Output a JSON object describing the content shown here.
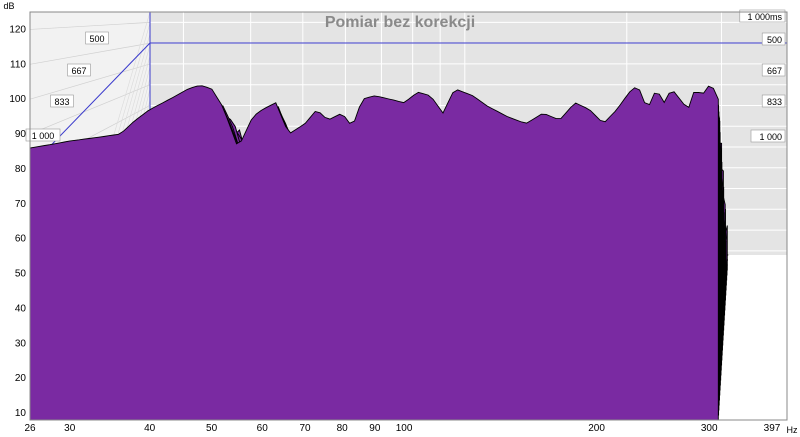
{
  "chart_data": {
    "type": "waterfall",
    "title": "Pomiar bez korekcji",
    "ylabel_unit": "dB",
    "xlabel_unit": "Hz",
    "y_ticks": [
      10,
      20,
      30,
      40,
      50,
      60,
      70,
      80,
      90,
      100,
      110,
      120
    ],
    "ylim": [
      8,
      125
    ],
    "x_ticks": [
      26,
      30,
      40,
      50,
      60,
      70,
      80,
      90,
      100,
      200,
      300,
      397
    ],
    "xlim": [
      26,
      397
    ],
    "x_scale": "log",
    "time_unit": "ms",
    "time_labels_right": [
      "1 000ms",
      "500",
      "667",
      "833",
      "1 000"
    ],
    "time_labels_left": [
      "500",
      "667",
      "833",
      "1 000"
    ],
    "slice_count": 34,
    "fill_color": "#7a2aa2",
    "edge_color": "#000000",
    "grid": true,
    "front_response": {
      "freq": [
        26,
        28,
        30,
        33,
        36,
        38,
        40,
        42,
        44,
        46,
        48,
        50,
        52,
        55,
        58,
        60,
        63,
        66,
        70,
        73,
        76,
        80,
        83,
        86,
        90,
        95,
        100,
        105,
        110,
        115,
        120,
        128,
        135,
        145,
        155,
        165,
        175,
        185,
        195,
        205,
        215,
        225,
        232,
        240,
        248,
        255,
        262,
        270,
        278,
        285,
        292,
        300,
        305,
        310
      ],
      "db": [
        86,
        87,
        88,
        89,
        90,
        94,
        97,
        99,
        101,
        103,
        104,
        103,
        98,
        86,
        95,
        97,
        99,
        90,
        93,
        97,
        94,
        96,
        92,
        100,
        101,
        100,
        99,
        102,
        101,
        96,
        103,
        101,
        98,
        95,
        93,
        96,
        94,
        99,
        97,
        93,
        97,
        102,
        104,
        97,
        103,
        99,
        103,
        100,
        97,
        103,
        101,
        104,
        103,
        100
      ]
    }
  }
}
